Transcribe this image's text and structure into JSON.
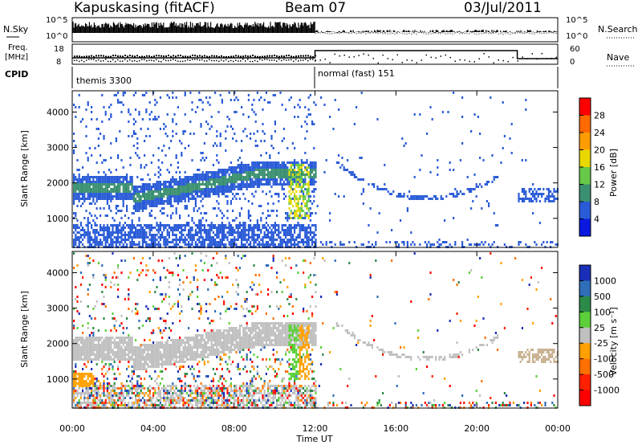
{
  "header": {
    "station": "Kapuskasing (fitACF)",
    "beam": "Beam 07",
    "date": "03/Jul/2011"
  },
  "strips": {
    "nsky_label": "N.Sky",
    "nsky_ticks": [
      "10^5",
      "10^0"
    ],
    "nsearch_label": "N.Search",
    "nsearch_ticks": [
      "10^5",
      "10^0"
    ],
    "freq_label_line1": "Freq.",
    "freq_label_line2": "[MHz]",
    "freq_ticks": [
      "18",
      "8"
    ],
    "nave_label": "Nave",
    "nave_ticks": [
      "60",
      "0"
    ],
    "cpid_label": "CPID",
    "cpid_segments": [
      {
        "label": "themis 3300",
        "start_hour": 0,
        "end_hour": 12
      },
      {
        "label": "normal (fast) 151",
        "start_hour": 12,
        "end_hour": 24
      }
    ]
  },
  "chart_data": [
    {
      "type": "heatmap",
      "title": "",
      "quantity": "Power",
      "ylabel": "Slant Range [km]",
      "xlabel": "",
      "yticks": [
        1000,
        2000,
        3000,
        4000
      ],
      "ylim": [
        180,
        4600
      ],
      "xlim_hours": [
        0,
        24
      ],
      "colorbar_label": "Power [dB]",
      "colorbar_ticks": [
        "28",
        "24",
        "20",
        "16",
        "12",
        "8",
        "4"
      ],
      "colorbar_colors": [
        "#ff0000",
        "#ff6a00",
        "#ff9c00",
        "#e8d800",
        "#66c94a",
        "#3a9070",
        "#2a5bd7",
        "#0a18e0"
      ]
    },
    {
      "type": "heatmap",
      "title": "",
      "quantity": "Velocity",
      "ylabel": "Slant Range [km]",
      "xlabel": "Time UT",
      "yticks": [
        1000,
        2000,
        3000,
        4000
      ],
      "ylim": [
        180,
        4600
      ],
      "xlim_hours": [
        0,
        24
      ],
      "xticks": [
        "00:00",
        "04:00",
        "08:00",
        "12:00",
        "16:00",
        "20:00",
        "00:00"
      ],
      "colorbar_label": "Velocity [m s⁻¹]",
      "colorbar_ticks": [
        "1000",
        "500",
        "100",
        "25",
        "-25",
        "-100",
        "-500",
        "-1000"
      ],
      "colorbar_colors": [
        "#1a2fb8",
        "#2f6eb8",
        "#2c8a48",
        "#5ccf3a",
        "#c0c0c0",
        "#ffa000",
        "#ff7000",
        "#ff2000",
        "#ff0000"
      ]
    }
  ]
}
